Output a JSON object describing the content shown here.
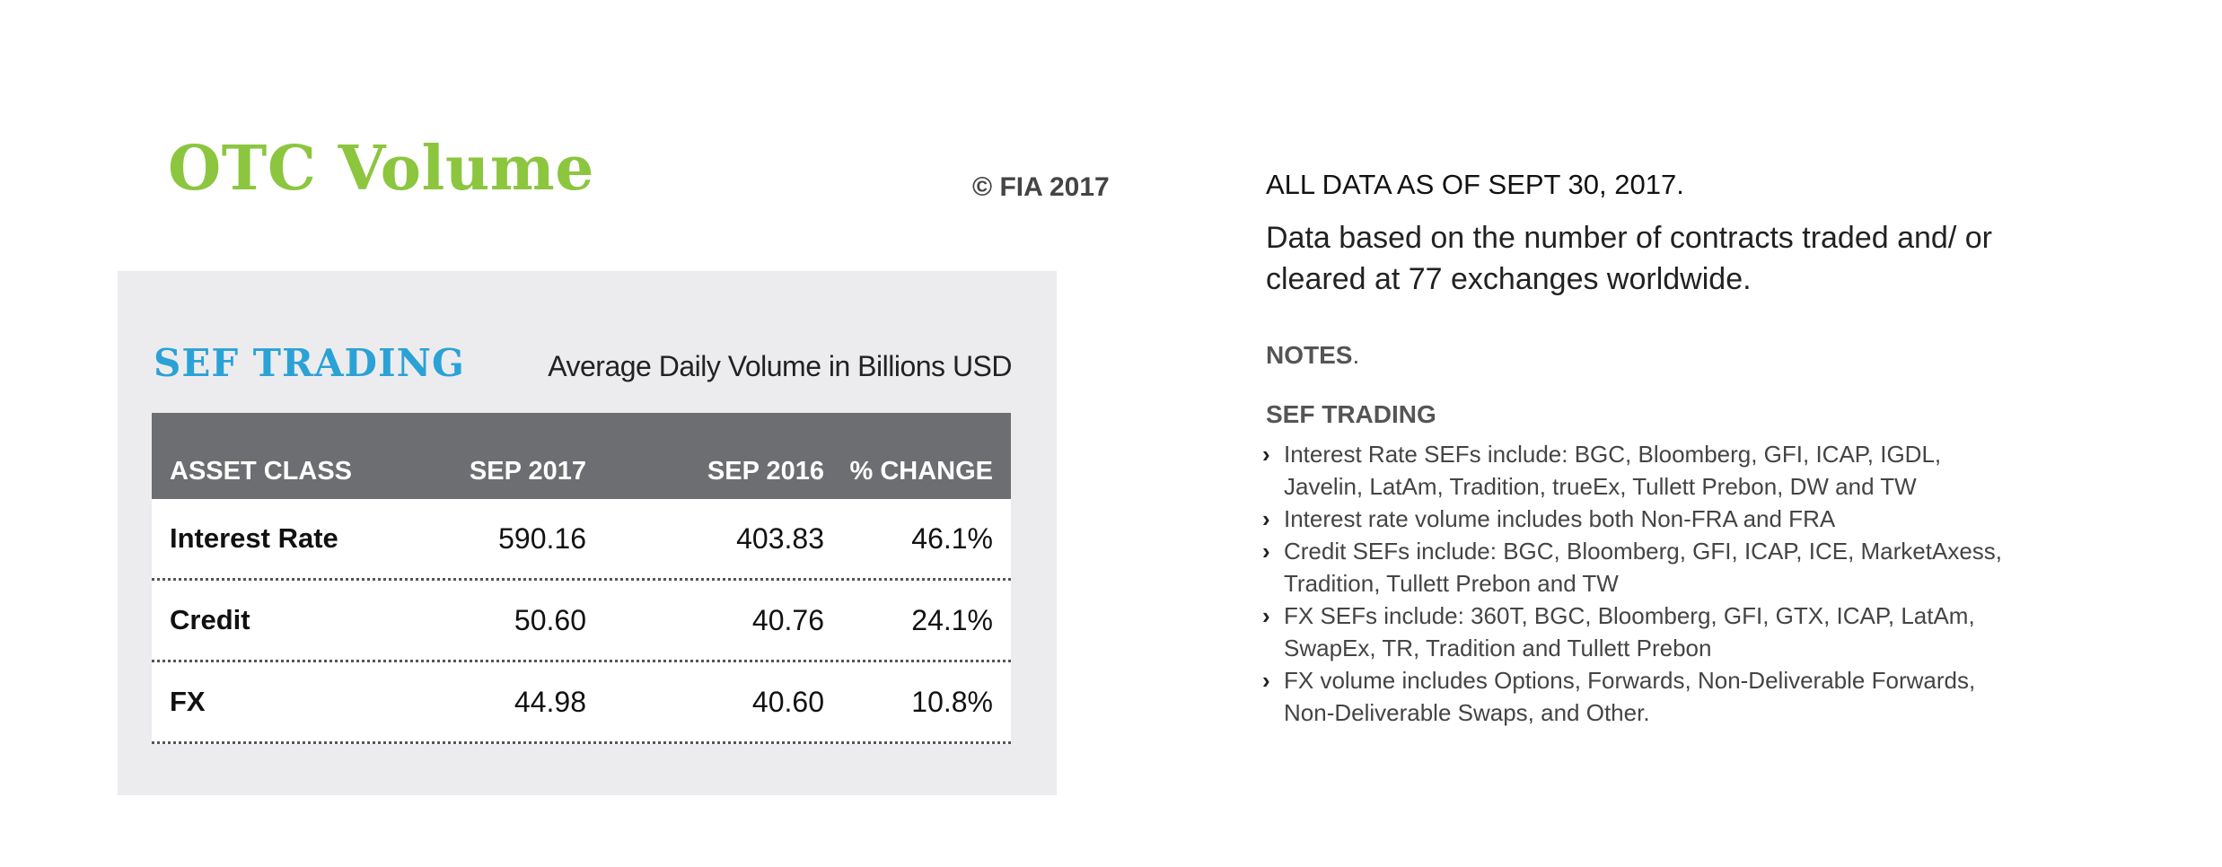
{
  "header": {
    "title": "OTC Volume",
    "copyright": "© FIA 2017"
  },
  "panel": {
    "section_title": "SEF TRADING",
    "subtitle": "Average Daily Volume in Billions USD",
    "table": {
      "headers": [
        "ASSET CLASS",
        "SEP 2017",
        "SEP 2016",
        "% CHANGE"
      ],
      "rows": [
        {
          "asset": "Interest Rate",
          "sep2017": "590.16",
          "sep2016": "403.83",
          "change": "46.1%"
        },
        {
          "asset": "Credit",
          "sep2017": "50.60",
          "sep2016": "40.76",
          "change": "24.1%"
        },
        {
          "asset": "FX",
          "sep2017": "44.98",
          "sep2016": "40.60",
          "change": "10.8%"
        }
      ]
    }
  },
  "info": {
    "as_of": "ALL DATA AS OF SEPT 30, 2017.",
    "description": "Data based on the number of contracts traded and/ or cleared at 77 exchanges worldwide.",
    "notes_label": "NOTES",
    "notes_dot": ".",
    "sef_label": "SEF TRADING",
    "notes": [
      "Interest Rate SEFs include:  BGC, Bloomberg, GFI, ICAP, IGDL, Javelin, LatAm, Tradition, trueEx, Tullett Prebon, DW and TW",
      "Interest rate volume includes both Non-FRA and FRA",
      "Credit SEFs include:  BGC, Bloomberg, GFI, ICAP, ICE, MarketAxess, Tradition, Tullett Prebon and TW",
      "FX SEFs include:  360T, BGC, Bloomberg, GFI, GTX, ICAP, LatAm, SwapEx, TR, Tradition and Tullett Prebon",
      "FX volume includes Options, Forwards, Non-Deliverable Forwards, Non-Deliverable Swaps, and Other."
    ],
    "bullet_icon": "chevron-right-icon"
  },
  "colors": {
    "title_green": "#8cc63f",
    "section_blue": "#2ba2d6",
    "header_gray": "#6d6e71",
    "panel_bg": "#ececee"
  }
}
